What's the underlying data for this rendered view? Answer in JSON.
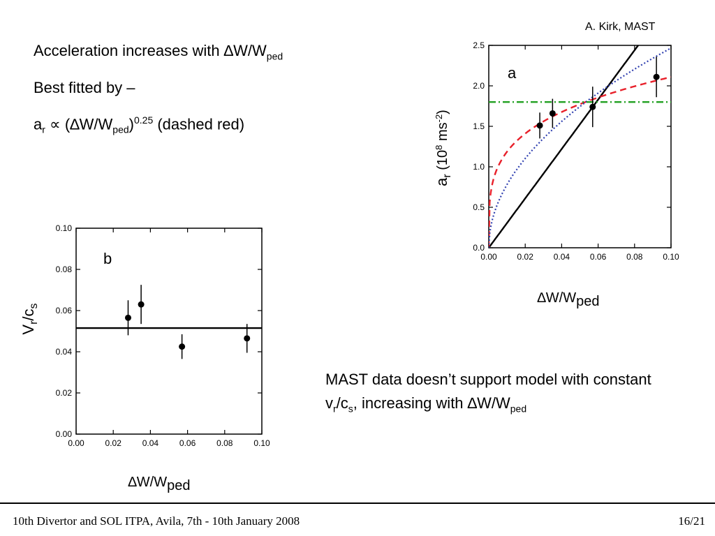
{
  "credit": "A. Kirk, MAST",
  "text": {
    "line1_main": "Acceleration increases with ∆W/W",
    "line1_sub": "ped",
    "line2": "Best fitted by –",
    "line3_a": "a",
    "line3_a_sub": "r",
    "line3_mid": " ∝ (∆W/W",
    "line3_sub": "ped",
    "line3_close": ")",
    "line3_sup": "0.25",
    "line3_end": " (dashed red)"
  },
  "note": {
    "p1": "MAST data doesn’t support model with constant v",
    "p1_sub1": "r",
    "p1_mid": "/c",
    "p1_sub2": "s",
    "p1_end": ", increasing with ∆W/W",
    "p1_sub3": "ped"
  },
  "footer": {
    "left": "10th Divertor and SOL ITPA, Avila, 7th - 10th January 2008",
    "right": "16/21"
  },
  "chart_data": [
    {
      "id": "a",
      "type": "scatter",
      "panel_label": "a",
      "xlabel_main": "∆W/W",
      "xlabel_sub": "ped",
      "ylabel_main": "a",
      "ylabel_sub": "r",
      "ylabel_unit": "(10",
      "ylabel_unit_sup": "8",
      "ylabel_unit_end": " ms",
      "ylabel_unit_sup2": "-2",
      "ylabel_unit_close": ")",
      "xlim": [
        0,
        0.1
      ],
      "ylim": [
        0,
        2.5
      ],
      "xticks": [
        0.0,
        0.02,
        0.04,
        0.06,
        0.08,
        0.1
      ],
      "xtick_labels": [
        "0.00",
        "0.02",
        "0.04",
        "0.06",
        "0.08",
        "0.10"
      ],
      "yticks": [
        0.0,
        0.5,
        1.0,
        1.5,
        2.0,
        2.5
      ],
      "ytick_labels": [
        "0.0",
        "0.5",
        "1.0",
        "1.5",
        "2.0",
        "2.5"
      ],
      "points": [
        {
          "x": 0.028,
          "y": 1.51,
          "err": 0.16
        },
        {
          "x": 0.035,
          "y": 1.66,
          "err": 0.18
        },
        {
          "x": 0.057,
          "y": 1.74,
          "err": 0.25
        },
        {
          "x": 0.092,
          "y": 2.11,
          "err": 0.25
        }
      ],
      "fits": [
        {
          "style": "solid",
          "color": "#000000",
          "model": "linear",
          "coef": 30.5
        },
        {
          "style": "dashed",
          "color": "#e8202a",
          "model": "power",
          "coef": 3.75,
          "exponent": 0.25
        },
        {
          "style": "dotted",
          "color": "#3040b0",
          "model": "power",
          "coef": 7.8,
          "exponent": 0.5
        },
        {
          "style": "dashdot",
          "color": "#22a022",
          "model": "constant",
          "value": 1.8
        }
      ]
    },
    {
      "id": "b",
      "type": "scatter",
      "panel_label": "b",
      "xlabel_main": "∆W/W",
      "xlabel_sub": "ped",
      "ylabel_main": "V",
      "ylabel_sub": "r",
      "ylabel_mid": "/c",
      "ylabel_sub2": "s",
      "xlim": [
        0,
        0.1
      ],
      "ylim": [
        0,
        0.1
      ],
      "xticks": [
        0.0,
        0.02,
        0.04,
        0.06,
        0.08,
        0.1
      ],
      "xtick_labels": [
        "0.00",
        "0.02",
        "0.04",
        "0.06",
        "0.08",
        "0.10"
      ],
      "yticks": [
        0.0,
        0.02,
        0.04,
        0.06,
        0.08,
        0.1
      ],
      "ytick_labels": [
        "0.00",
        "0.02",
        "0.04",
        "0.06",
        "0.08",
        "0.10"
      ],
      "points": [
        {
          "x": 0.028,
          "y": 0.0565,
          "err": 0.0085
        },
        {
          "x": 0.035,
          "y": 0.063,
          "err": 0.0095
        },
        {
          "x": 0.057,
          "y": 0.0425,
          "err": 0.006
        },
        {
          "x": 0.092,
          "y": 0.0465,
          "err": 0.007
        }
      ],
      "fits": [
        {
          "style": "solid",
          "color": "#000000",
          "model": "constant",
          "value": 0.0515
        }
      ]
    }
  ]
}
